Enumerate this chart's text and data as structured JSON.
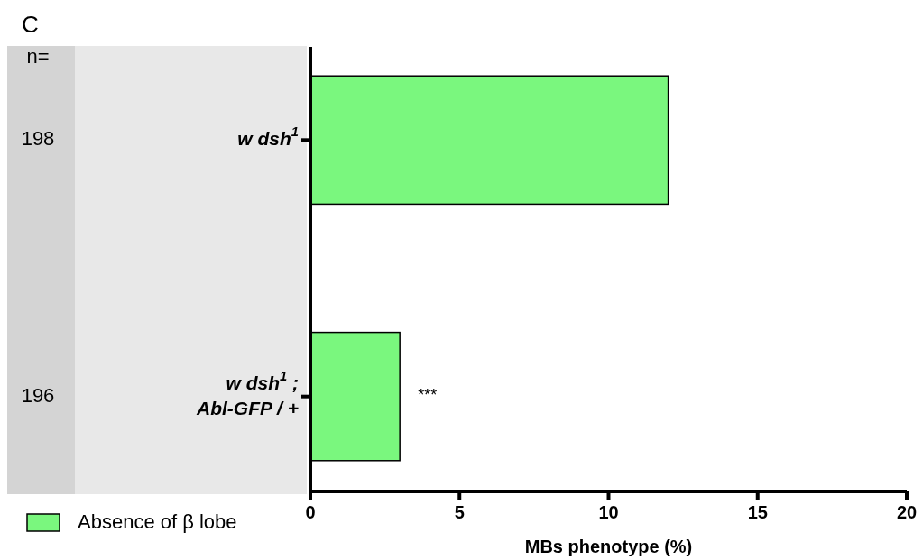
{
  "chart_data": {
    "type": "bar",
    "title": "C",
    "orientation": "horizontal",
    "categories": [
      "w dsh$^{1}$",
      "w dsh$^{1}$ ;\nAbl-GFP / +"
    ],
    "series": [
      {
        "name": "Absence of β lobe",
        "color": "#7af77e",
        "values": [
          12,
          3
        ]
      }
    ],
    "xlim": [
      0,
      20
    ],
    "xticks": [
      0,
      5,
      10,
      15,
      20
    ],
    "xlabel": "MBs phenotype (%)",
    "legend": "bottom left",
    "grid": false,
    "annotations": [
      "n=",
      "198",
      "196",
      {
        "text": "***",
        "x": 3,
        "y": "w dsh$^{1}$ ;\nAbl-GFP / +"
      }
    ]
  }
}
